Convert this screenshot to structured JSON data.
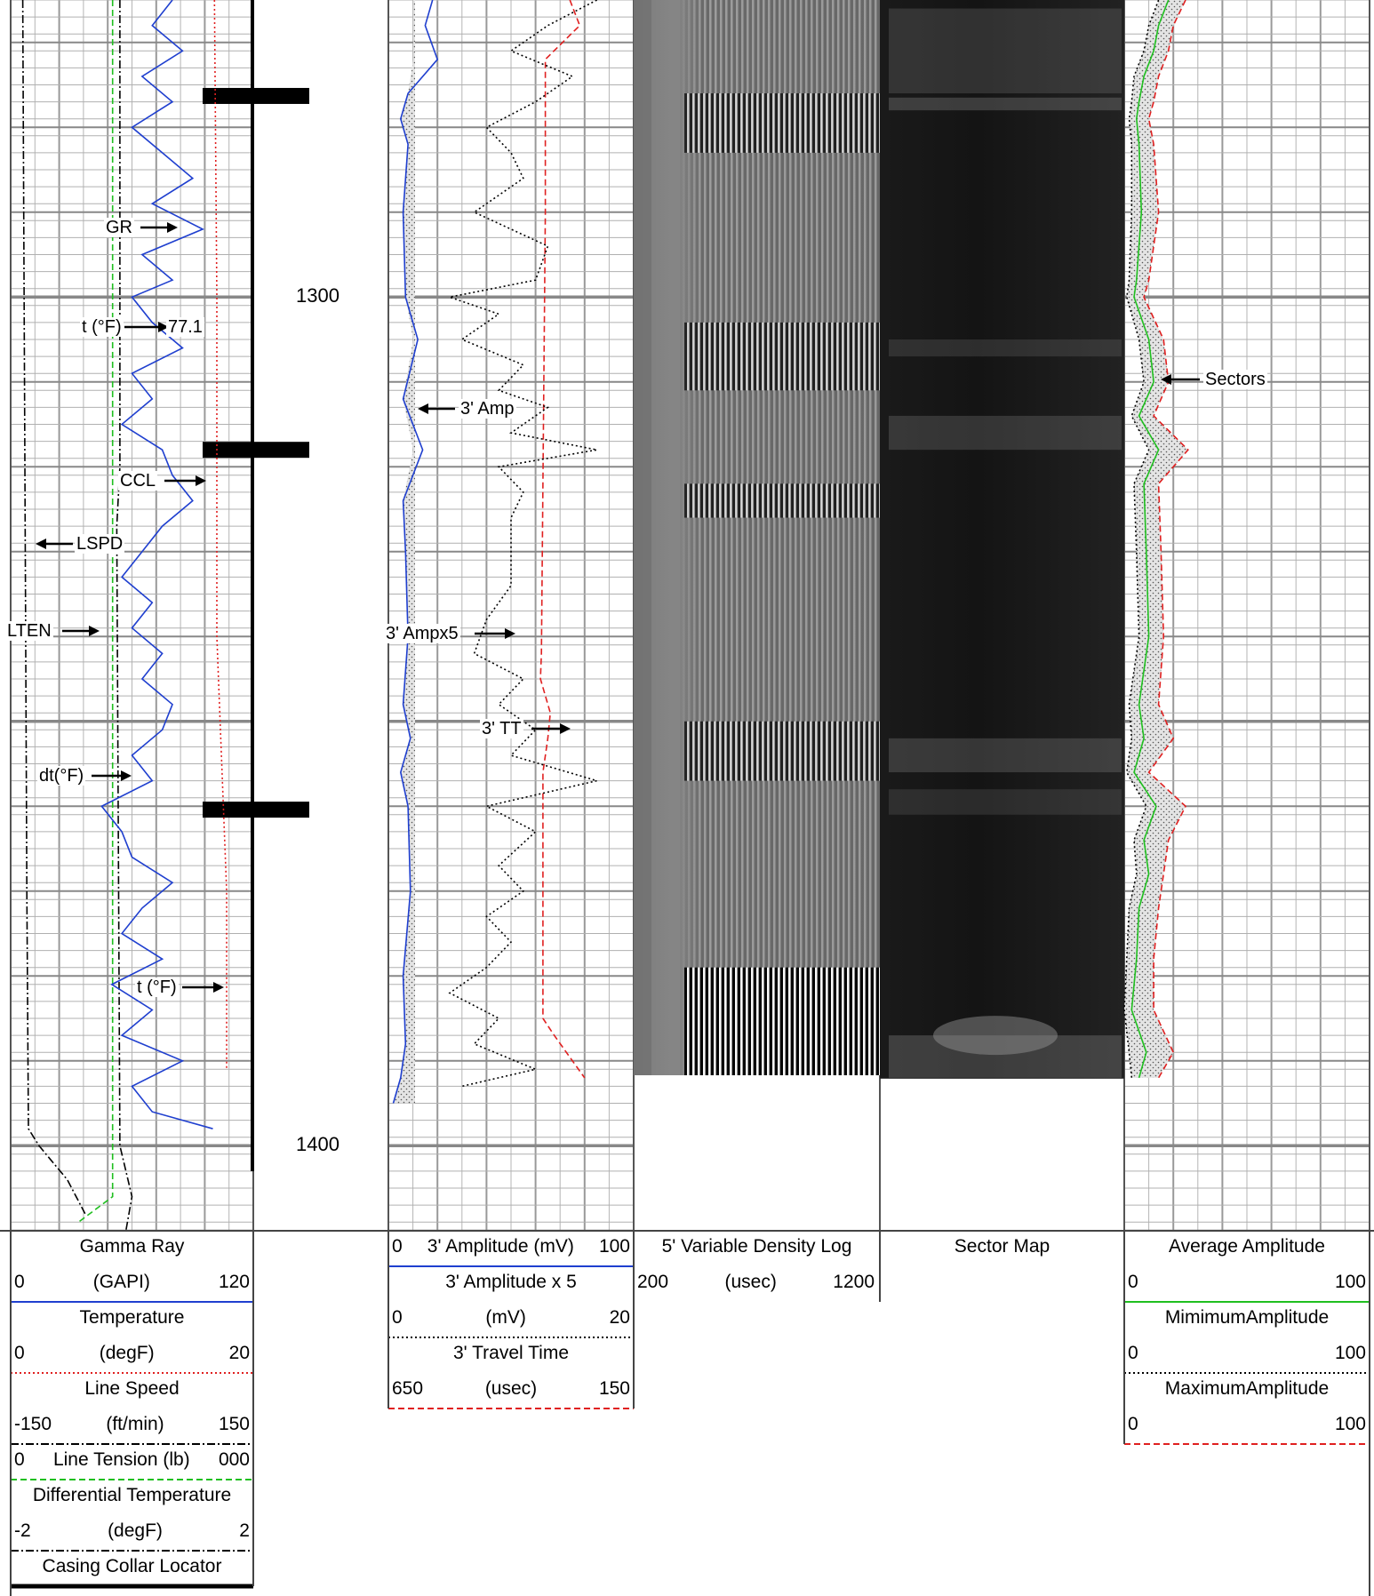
{
  "depths": {
    "top_label": "1300",
    "bottom_label": "1400"
  },
  "annotations": {
    "gr": "GR",
    "temp_top": "t (°F)",
    "temp_top_value": "77.1",
    "ccl": "CCL",
    "lspd": "LSPD",
    "lten": "LTEN",
    "dt": "dt(°F)",
    "temp_bottom": "t (°F)",
    "amp3": "3' Amp",
    "amp3x5": "3' Ampx5",
    "tt3": "3' TT",
    "sectors": "Sectors"
  },
  "headers": {
    "track1": [
      {
        "title": "Gamma Ray",
        "left": "0",
        "unit": "(GAPI)",
        "right": "120",
        "line_color": "#1f3fcf",
        "line_style": "solid"
      },
      {
        "title": "Temperature",
        "left": "0",
        "unit": "(degF)",
        "right": "20",
        "line_color": "#e02020",
        "line_style": "dotted"
      },
      {
        "title": "Line Speed",
        "left": "-150",
        "unit": "(ft/min)",
        "right": "150",
        "line_color": "#000000",
        "line_style": "dashdot"
      },
      {
        "title": "",
        "left": "0",
        "unit": "Line Tension (lb)",
        "right": "000",
        "line_color": "#1fbf1f",
        "line_style": "dashed"
      },
      {
        "title": "Differential Temperature",
        "left": "-2",
        "unit": "(degF)",
        "right": "2",
        "line_color": "#000000",
        "line_style": "dashdot"
      },
      {
        "title": "Casing Collar Locator",
        "left": "",
        "unit": "",
        "right": "",
        "line_color": "#000000",
        "line_style": "thick"
      }
    ],
    "track3": [
      {
        "title": "",
        "left": "0",
        "unit": "3' Amplitude (mV)",
        "right": "100",
        "line_color": "#1f3fcf",
        "line_style": "solid"
      },
      {
        "title": "3' Amplitude x 5",
        "left": "0",
        "unit": "(mV)",
        "right": "20",
        "line_color": "#000000",
        "line_style": "dotted"
      },
      {
        "title": "3' Travel Time",
        "left": "650",
        "unit": "(usec)",
        "right": "150",
        "line_color": "#e02020",
        "line_style": "dashed"
      }
    ],
    "track4": {
      "title": "5' Variable Density Log",
      "left": "200",
      "unit": "(usec)",
      "right": "1200"
    },
    "track5": {
      "title": "Sector Map"
    },
    "track6": [
      {
        "title": "Average Amplitude",
        "left": "0",
        "unit": "",
        "right": "100",
        "line_color": "#1fbf1f",
        "line_style": "solid"
      },
      {
        "title": "MimimumAmplitude",
        "left": "0",
        "unit": "",
        "right": "100",
        "line_color": "#000000",
        "line_style": "dotted"
      },
      {
        "title": "MaximumAmplitude",
        "left": "0",
        "unit": "",
        "right": "100",
        "line_color": "#e02020",
        "line_style": "dashed"
      }
    ]
  },
  "chart_data": {
    "type": "line",
    "depth_unit": "ft",
    "depth_range": [
      1265,
      1410
    ],
    "depth_ticks": [
      1300,
      1400
    ],
    "ccl_collars_depth": [
      1276.2,
      1317.9,
      1360.3
    ],
    "tracks": [
      {
        "name": "track1",
        "curves": [
          {
            "id": "GR",
            "scale": [
              0,
              120
            ],
            "color": "#1f3fcf",
            "style": "solid",
            "depth": [
              1265,
              1268,
              1271,
              1274,
              1277,
              1280,
              1283,
              1286,
              1289,
              1292,
              1295,
              1298,
              1300,
              1303,
              1306,
              1309,
              1312,
              1315,
              1318,
              1321,
              1324,
              1327,
              1330,
              1333,
              1336,
              1339,
              1342,
              1345,
              1348,
              1351,
              1354,
              1357,
              1360,
              1363,
              1366,
              1369,
              1372,
              1375,
              1378,
              1381,
              1384,
              1387,
              1390,
              1393,
              1396,
              1398
            ],
            "values": [
              80,
              70,
              85,
              65,
              80,
              60,
              75,
              90,
              70,
              95,
              65,
              80,
              60,
              70,
              85,
              60,
              70,
              55,
              75,
              80,
              90,
              75,
              65,
              55,
              70,
              60,
              75,
              65,
              80,
              75,
              60,
              70,
              45,
              55,
              60,
              80,
              65,
              55,
              75,
              50,
              70,
              55,
              85,
              60,
              70,
              100
            ]
          },
          {
            "id": "Temperature",
            "scale": [
              0,
              20
            ],
            "color": "#e02020",
            "style": "dotted",
            "depth": [
              1265,
              1300,
              1340,
              1370,
              1391
            ],
            "values": [
              16.8,
              17.0,
              17.0,
              17.8,
              17.8
            ]
          },
          {
            "id": "LSPD",
            "scale": [
              -150,
              150
            ],
            "color": "#000000",
            "style": "dashdot",
            "depth": [
              1265,
              1370,
              1398,
              1400,
              1404,
              1408
            ],
            "values": [
              -135,
              -130,
              -128,
              -115,
              -80,
              -58
            ]
          },
          {
            "id": "LTEN",
            "scale": [
              0,
              1000
            ],
            "color": "#1fbf1f",
            "style": "dashed",
            "depth": [
              1265,
              1406,
              1409
            ],
            "values": [
              420,
              420,
              280
            ]
          },
          {
            "id": "dt",
            "scale": [
              -2,
              2
            ],
            "color": "#000000",
            "style": "dashdot",
            "depth": [
              1265,
              1320,
              1327,
              1400,
              1406,
              1410
            ],
            "values": [
              -0.2,
              -0.2,
              -0.25,
              -0.2,
              0.0,
              -0.1
            ]
          }
        ]
      },
      {
        "name": "track3",
        "curves": [
          {
            "id": "3' Amp",
            "scale": [
              0,
              100
            ],
            "color": "#1f3fcf",
            "style": "solid",
            "depth": [
              1265,
              1268,
              1272,
              1276,
              1279,
              1282,
              1290,
              1300,
              1305,
              1312,
              1318,
              1324,
              1330,
              1340,
              1348,
              1352,
              1356,
              1360,
              1370,
              1380,
              1388,
              1392,
              1395
            ],
            "values": [
              18,
              15,
              20,
              8,
              5,
              8,
              6,
              7,
              12,
              6,
              14,
              6,
              7,
              8,
              6,
              9,
              5,
              8,
              9,
              6,
              7,
              5,
              2
            ]
          },
          {
            "id": "3' Ampx5",
            "scale": [
              0,
              20
            ],
            "color": "#000000",
            "style": "dotted",
            "depth": [
              1265,
              1268,
              1271,
              1274,
              1277,
              1280,
              1283,
              1286,
              1290,
              1294,
              1298,
              1300,
              1302,
              1305,
              1308,
              1311,
              1313,
              1316,
              1318,
              1320,
              1323,
              1326,
              1330,
              1334,
              1338,
              1342,
              1345,
              1348,
              1351,
              1354,
              1357,
              1360,
              1363,
              1367,
              1370,
              1373,
              1376,
              1379,
              1382,
              1385,
              1388,
              1391,
              1393
            ],
            "values": [
              17,
              13,
              10,
              15,
              12,
              8,
              10,
              11,
              7,
              13,
              12,
              5,
              9,
              6,
              11,
              9,
              13,
              10,
              17,
              9,
              11,
              10,
              10,
              10,
              8,
              7,
              11,
              9,
              12,
              10,
              17,
              8,
              12,
              9,
              11,
              8,
              10,
              8,
              5,
              9,
              7,
              12,
              6
            ]
          },
          {
            "id": "3' TT",
            "scale": [
              650,
              150
            ],
            "color": "#e02020",
            "style": "dashed",
            "depth": [
              1265,
              1268,
              1272,
              1290,
              1342,
              1345,
              1349,
              1352,
              1356,
              1385,
              1387,
              1392
            ],
            "values": [
              280,
              260,
              330,
              330,
              338,
              340,
              320,
              325,
              335,
              335,
              312,
              250
            ]
          }
        ]
      },
      {
        "name": "track6",
        "curves": [
          {
            "id": "Average Amplitude",
            "scale": [
              0,
              100
            ],
            "color": "#1fbf1f",
            "style": "solid",
            "depth": [
              1265,
              1268,
              1271,
              1274,
              1277,
              1279,
              1282,
              1290,
              1298,
              1300,
              1305,
              1310,
              1314,
              1318,
              1322,
              1330,
              1340,
              1348,
              1352,
              1356,
              1360,
              1364,
              1368,
              1372,
              1378,
              1384,
              1389,
              1392
            ],
            "values": [
              18,
              14,
              12,
              8,
              6,
              5,
              6,
              7,
              5,
              4,
              10,
              12,
              6,
              14,
              8,
              9,
              10,
              6,
              8,
              4,
              13,
              8,
              10,
              6,
              5,
              3,
              9,
              6
            ]
          },
          {
            "id": "MimimumAmplitude",
            "scale": [
              0,
              100
            ],
            "color": "#000000",
            "style": "dotted",
            "depth": [
              1265,
              1268,
              1271,
              1274,
              1277,
              1279,
              1282,
              1290,
              1298,
              1300,
              1305,
              1310,
              1314,
              1318,
              1322,
              1330,
              1340,
              1348,
              1352,
              1356,
              1360,
              1364,
              1368,
              1372,
              1378,
              1384,
              1389,
              1392
            ],
            "values": [
              14,
              10,
              8,
              4,
              3,
              2,
              3,
              3,
              2,
              1,
              6,
              8,
              3,
              10,
              4,
              5,
              6,
              2,
              3,
              1,
              9,
              4,
              5,
              2,
              1,
              0,
              2,
              3
            ]
          },
          {
            "id": "MaximumAmplitude",
            "scale": [
              0,
              100
            ],
            "color": "#e02020",
            "style": "dashed",
            "depth": [
              1265,
              1268,
              1271,
              1274,
              1277,
              1279,
              1282,
              1290,
              1298,
              1300,
              1305,
              1310,
              1314,
              1318,
              1322,
              1330,
              1340,
              1348,
              1352,
              1356,
              1360,
              1364,
              1368,
              1372,
              1378,
              1384,
              1389,
              1392
            ],
            "values": [
              25,
              20,
              18,
              14,
              12,
              10,
              12,
              14,
              10,
              8,
              16,
              18,
              12,
              26,
              14,
              15,
              16,
              14,
              20,
              10,
              25,
              18,
              16,
              14,
              12,
              12,
              20,
              14
            ]
          }
        ]
      }
    ],
    "vdl": {
      "time_range": [
        200,
        1200
      ],
      "bottom_depth": 1391.7
    },
    "sector_map": {
      "bottom_depth": 1392.1
    }
  }
}
